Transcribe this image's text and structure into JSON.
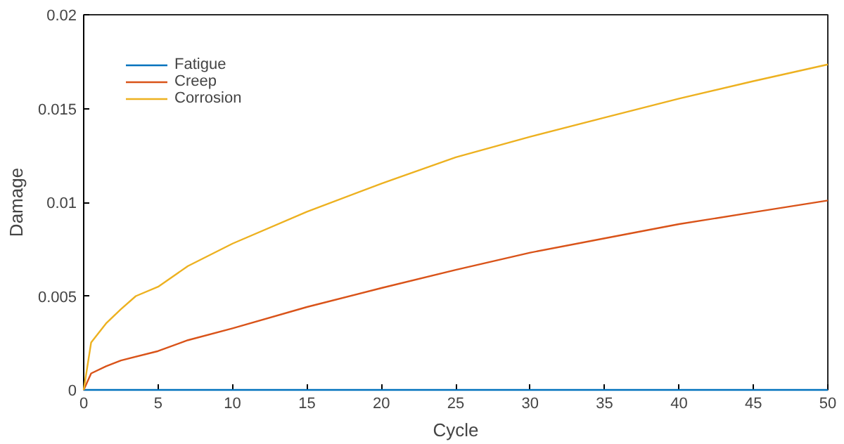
{
  "chart_data": {
    "type": "line",
    "xlabel": "Cycle",
    "ylabel": "Damage",
    "xlim": [
      0,
      50
    ],
    "ylim": [
      0,
      0.02
    ],
    "xticks": [
      0,
      5,
      10,
      15,
      20,
      25,
      30,
      35,
      40,
      45,
      50
    ],
    "yticks": [
      0,
      0.005,
      0.01,
      0.015,
      0.02
    ],
    "grid": false,
    "legend": "top left",
    "series": [
      {
        "name": "Fatigue",
        "color": "#0072bd",
        "x": [
          0,
          50
        ],
        "values": [
          0,
          0
        ]
      },
      {
        "name": "Creep",
        "color": "#d95319",
        "x": [
          0,
          0.5,
          1.5,
          2.5,
          5,
          7,
          10,
          15,
          20,
          25,
          30,
          35,
          40,
          45,
          50
        ],
        "values": [
          0,
          0.00088,
          0.00126,
          0.00157,
          0.00207,
          0.00265,
          0.00328,
          0.00442,
          0.00543,
          0.0064,
          0.00732,
          0.00808,
          0.00884,
          0.00947,
          0.0101
        ]
      },
      {
        "name": "Corrosion",
        "color": "#edb120",
        "x": [
          0,
          0.5,
          1.5,
          2.5,
          3.5,
          5,
          7,
          10,
          15,
          20,
          25,
          30,
          35,
          40,
          45,
          50
        ],
        "values": [
          0,
          0.00253,
          0.00354,
          0.0043,
          0.005,
          0.0055,
          0.0066,
          0.0078,
          0.0095,
          0.011,
          0.0124,
          0.0135,
          0.01452,
          0.01553,
          0.01646,
          0.01735
        ]
      }
    ]
  }
}
